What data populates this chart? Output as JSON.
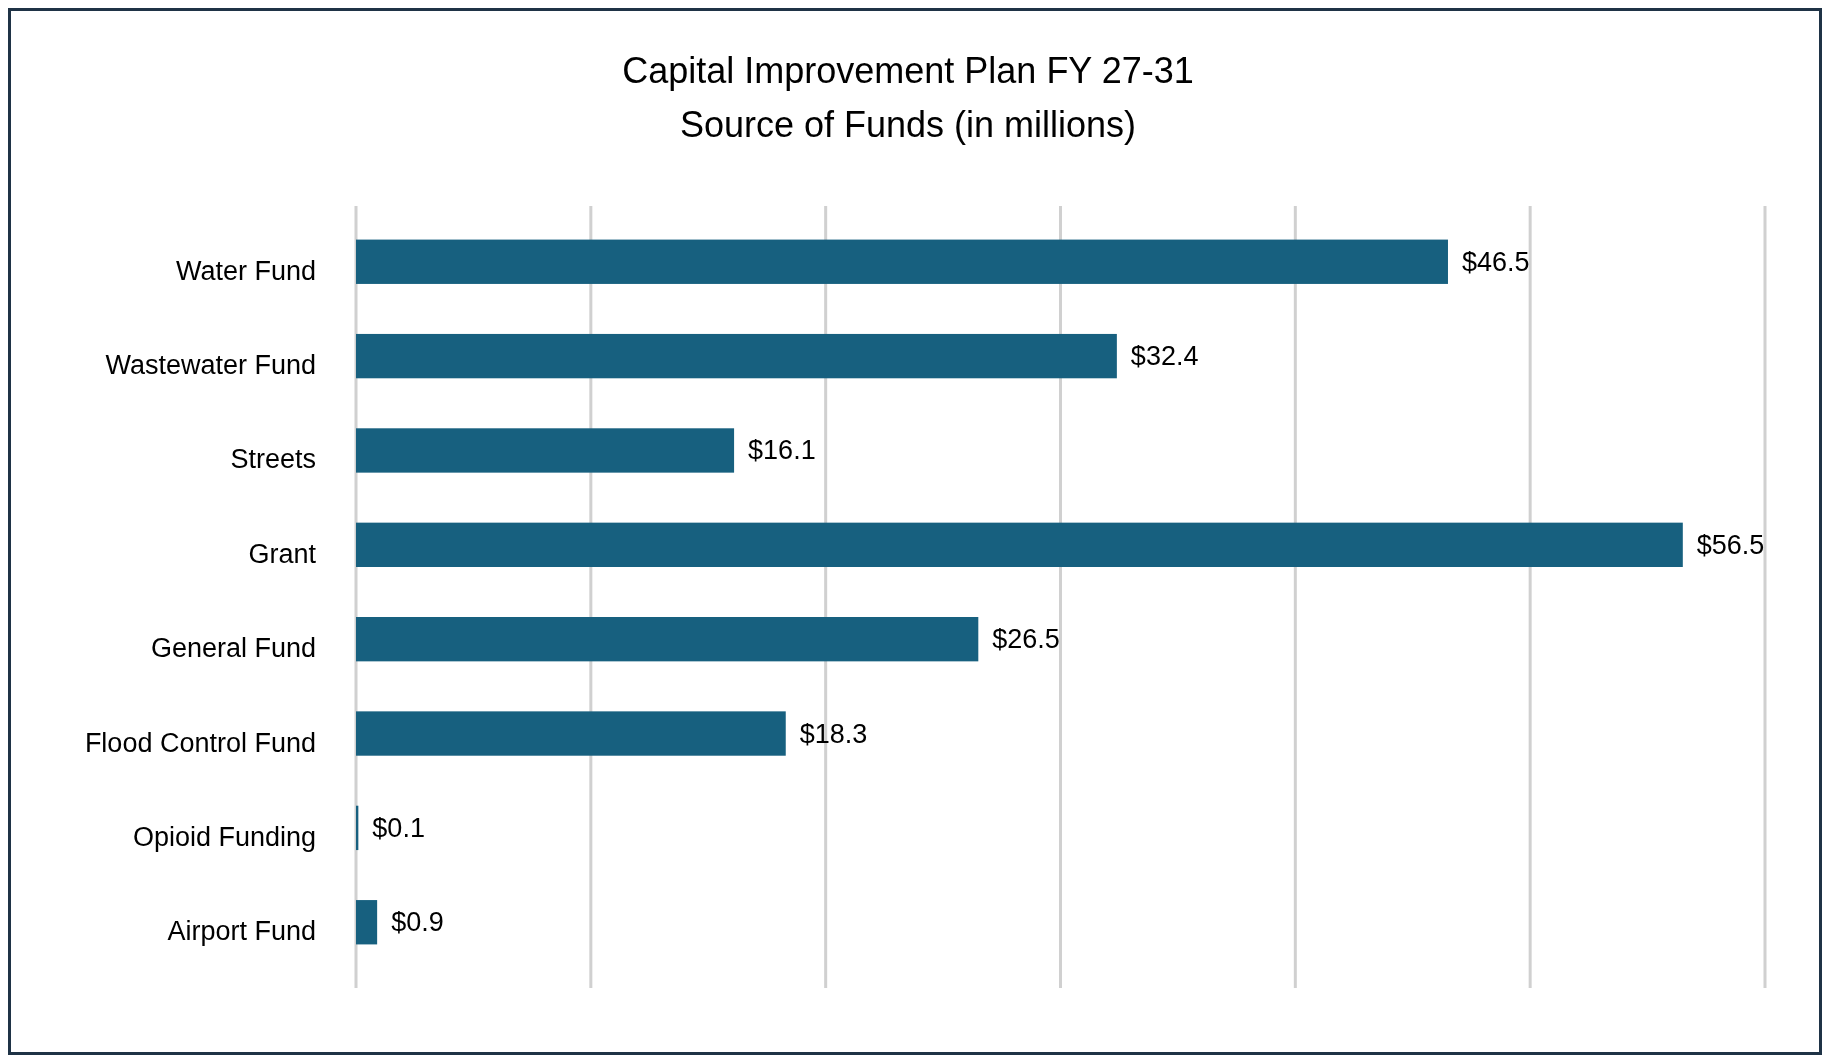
{
  "chart_data": {
    "type": "bar",
    "orientation": "horizontal",
    "title": "Capital Improvement Plan FY 27-31",
    "subtitle": "Source of Funds (in millions)",
    "categories": [
      "Water Fund",
      "Wastewater Fund",
      "Streets",
      "Grant",
      "General Fund",
      "Flood Control Fund",
      "Opioid Funding",
      "Airport Fund"
    ],
    "values": [
      46.5,
      32.4,
      16.1,
      56.5,
      26.5,
      18.3,
      0.1,
      0.9
    ],
    "value_labels": [
      "$46.5",
      "$32.4",
      "$16.1",
      "$56.5",
      "$26.5",
      "$18.3",
      "$0.1",
      "$0.9"
    ],
    "color": "#17607f",
    "xlim": [
      0,
      60
    ],
    "xticks": [
      {
        "value": 0,
        "label": null
      },
      {
        "value": 10,
        "label": null
      },
      {
        "value": 20,
        "label": null
      },
      {
        "value": 30,
        "label": null
      },
      {
        "value": 40,
        "label": null
      },
      {
        "value": 50,
        "label": null
      },
      {
        "value": 60,
        "label": null
      }
    ],
    "grid": "x",
    "tick_labels": "y"
  }
}
